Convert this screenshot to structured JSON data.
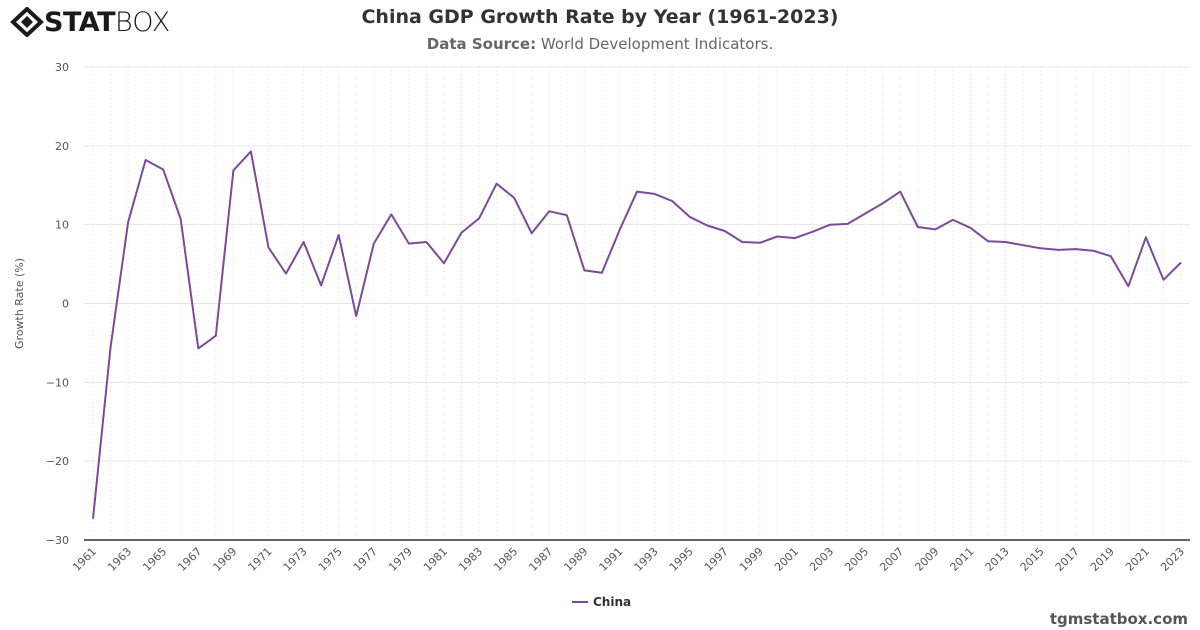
{
  "logo": {
    "bold": "STAT",
    "light": "BOX"
  },
  "title": "China GDP Growth Rate by Year (1961-2023)",
  "subtitle": {
    "label": "Data Source:",
    "text": " World Development Indicators."
  },
  "credit": "tgmstatbox.com",
  "colors": {
    "line": "#7b4a98",
    "axis": "#333333",
    "grid": "#e6e6e6"
  },
  "chart_data": {
    "type": "line",
    "title": "China GDP Growth Rate by Year (1961-2023)",
    "ylabel": "Growth Rate (%)",
    "xlabel": "",
    "ylim": [
      -30,
      30
    ],
    "yticks": [
      -30,
      -20,
      -10,
      0,
      10,
      20,
      30
    ],
    "grid": true,
    "legend": "bottom-center",
    "x": [
      1961,
      1962,
      1963,
      1964,
      1965,
      1966,
      1967,
      1968,
      1969,
      1970,
      1971,
      1972,
      1973,
      1974,
      1975,
      1976,
      1977,
      1978,
      1979,
      1980,
      1981,
      1982,
      1983,
      1984,
      1985,
      1986,
      1987,
      1988,
      1989,
      1990,
      1991,
      1992,
      1993,
      1994,
      1995,
      1996,
      1997,
      1998,
      1999,
      2000,
      2001,
      2002,
      2003,
      2004,
      2005,
      2006,
      2007,
      2008,
      2009,
      2010,
      2011,
      2012,
      2013,
      2014,
      2015,
      2016,
      2017,
      2018,
      2019,
      2020,
      2021,
      2022,
      2023
    ],
    "series": [
      {
        "name": "China",
        "values": [
          -27.3,
          -5.6,
          10.3,
          18.2,
          17.0,
          10.7,
          -5.7,
          -4.1,
          16.9,
          19.3,
          7.1,
          3.8,
          7.8,
          2.3,
          8.7,
          -1.6,
          7.6,
          11.3,
          7.6,
          7.8,
          5.1,
          9.0,
          10.8,
          15.2,
          13.4,
          8.9,
          11.7,
          11.2,
          4.2,
          3.9,
          9.3,
          14.2,
          13.9,
          13.0,
          11.0,
          9.9,
          9.2,
          7.8,
          7.7,
          8.5,
          8.3,
          9.1,
          10.0,
          10.1,
          11.4,
          12.7,
          14.2,
          9.7,
          9.4,
          10.6,
          9.6,
          7.9,
          7.8,
          7.4,
          7.0,
          6.8,
          6.9,
          6.7,
          6.0,
          2.2,
          8.4,
          3.0,
          5.2
        ]
      }
    ]
  }
}
